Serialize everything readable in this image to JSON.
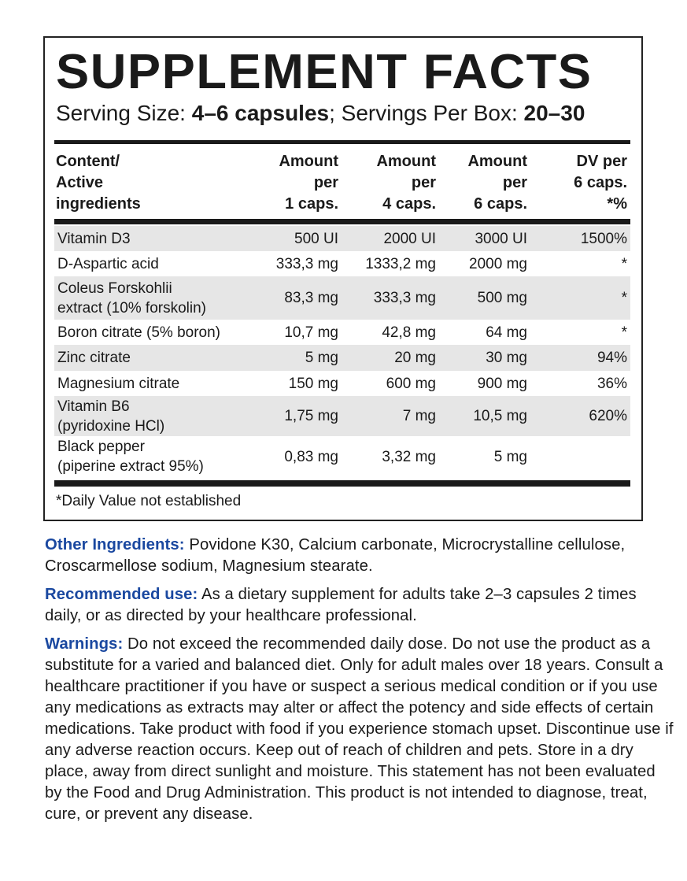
{
  "title": "SUPPLEMENT FACTS",
  "serving": {
    "label1": "Serving Size: ",
    "value1": "4–6 capsules",
    "label2": "; Servings Per Box: ",
    "value2": "20–30"
  },
  "headers": [
    "Content/\nActive\ningredients",
    "Amount\nper\n1 caps.",
    "Amount\nper\n4 caps.",
    "Amount\nper\n6 caps.",
    "DV per\n6 caps.\n*%"
  ],
  "rows": [
    {
      "name": "Vitamin D3",
      "a1": "500 UI",
      "a4": "2000 UI",
      "a6": "3000 UI",
      "dv": "1500%"
    },
    {
      "name": "D-Aspartic acid",
      "a1": "333,3 mg",
      "a4": "1333,2 mg",
      "a6": "2000 mg",
      "dv": "*"
    },
    {
      "name": "Coleus Forskohlii\nextract (10% forskolin)",
      "a1": "83,3 mg",
      "a4": "333,3 mg",
      "a6": "500 mg",
      "dv": "*"
    },
    {
      "name": "Boron citrate (5% boron)",
      "a1": "10,7 mg",
      "a4": "42,8 mg",
      "a6": "64 mg",
      "dv": "*"
    },
    {
      "name": "Zinc citrate",
      "a1": "5 mg",
      "a4": "20 mg",
      "a6": "30 mg",
      "dv": "94%"
    },
    {
      "name": "Magnesium citrate",
      "a1": "150 mg",
      "a4": "600 mg",
      "a6": "900 mg",
      "dv": "36%"
    },
    {
      "name": "Vitamin B6\n(pyridoxine HCl)",
      "a1": "1,75 mg",
      "a4": "7 mg",
      "a6": "10,5 mg",
      "dv": "620%"
    },
    {
      "name": "Black pepper\n(piperine extract 95%)",
      "a1": "0,83 mg",
      "a4": "3,32 mg",
      "a6": "5 mg",
      "dv": ""
    }
  ],
  "footnote": "*Daily Value not established",
  "other": {
    "label": "Other Ingredients:",
    "text": " Povidone K30, Calcium carbonate, Microcrystalline cellulose, Croscarmellose sodium, Magnesium stearate."
  },
  "use": {
    "label": "Recommended use:",
    "text": " As a dietary supplement for adults take 2–3 capsules 2 times daily, or as directed by your healthcare professional."
  },
  "warnings": {
    "label": "Warnings:",
    "text": " Do not exceed the recommended daily dose. Do not use the product as a substitute for a varied and balanced diet. Only for adult males over 18 years. Consult a healthcare practitioner if you have or suspect a serious medical condition or if you use any medications as extracts may alter or affect the potency and side effects of certain medications. Take product with food if you experience stomach upset. Discontinue use if any adverse reaction occurs. Keep out of reach of children and pets. Store in a dry place, away from direct sunlight and moisture. This statement has not been evaluated by the Food and Drug Administration. This product is not intended to diagnose, treat, cure, or prevent any disease."
  },
  "colors": {
    "label_blue": "#1a48a0",
    "row_gray": "#e6e6e6"
  }
}
